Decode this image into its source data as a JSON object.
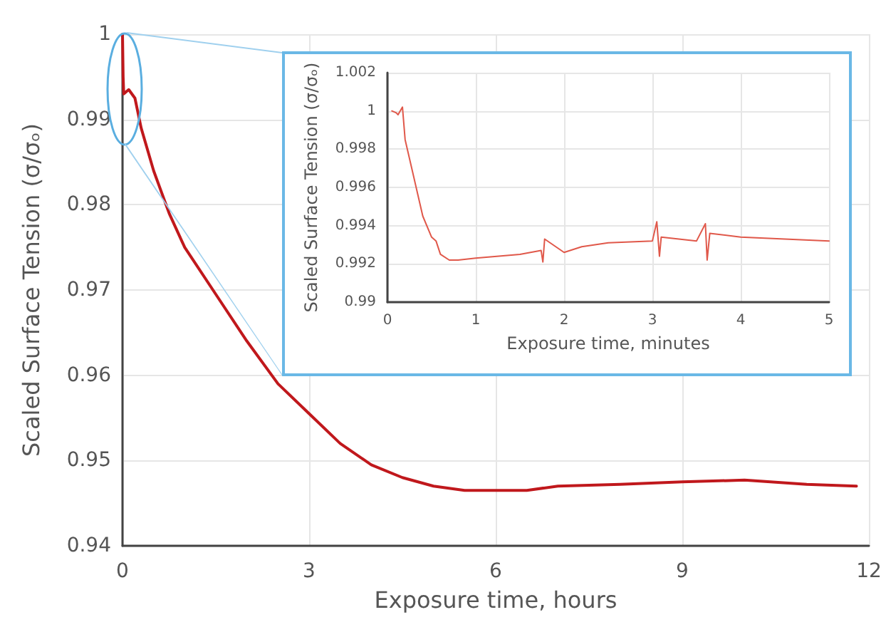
{
  "chart_data": [
    {
      "type": "line",
      "xlabel": "Exposure time, hours",
      "ylabel": "Scaled Surface Tension (σ/σₒ)",
      "xlim": [
        0,
        12
      ],
      "xticks": [
        0,
        3,
        6,
        9,
        12
      ],
      "ylim": [
        0.94,
        1
      ],
      "yticks": [
        0.94,
        0.95,
        0.96,
        0.97,
        0.98,
        0.99,
        1
      ],
      "grid": true,
      "marker": "none",
      "series": [
        {
          "color": "#c0181c",
          "x": [
            0,
            0.01,
            0.02,
            0.1,
            0.2,
            0.3,
            0.5,
            0.75,
            1,
            1.5,
            2,
            2.5,
            3,
            3.5,
            4,
            4.5,
            5,
            5.5,
            6,
            6.5,
            7,
            8,
            9,
            10,
            11,
            11.8
          ],
          "values": [
            1,
            0.995,
            0.993,
            0.9935,
            0.9925,
            0.989,
            0.984,
            0.979,
            0.975,
            0.9695,
            0.964,
            0.959,
            0.9555,
            0.952,
            0.9495,
            0.948,
            0.947,
            0.9465,
            0.9465,
            0.9465,
            0.947,
            0.9472,
            0.9475,
            0.9477,
            0.9472,
            0.947
          ]
        }
      ]
    },
    {
      "type": "line",
      "xlabel": "Exposure time, minutes",
      "ylabel": "Scaled Surface Tension (σ/σₒ)",
      "xlim": [
        0,
        5
      ],
      "xticks": [
        0,
        1,
        2,
        3,
        4,
        5
      ],
      "ylim": [
        0.99,
        1.002
      ],
      "yticks": [
        0.99,
        0.992,
        0.994,
        0.996,
        0.998,
        1,
        1.002
      ],
      "grid": true,
      "marker": "none",
      "series": [
        {
          "color": "#e0584a",
          "x": [
            0.05,
            0.1,
            0.12,
            0.17,
            0.2,
            0.3,
            0.4,
            0.5,
            0.55,
            0.6,
            0.7,
            0.8,
            1,
            1.5,
            1.74,
            1.76,
            1.78,
            2,
            2.2,
            2.5,
            3,
            3.05,
            3.08,
            3.1,
            3.5,
            3.6,
            3.62,
            3.65,
            4,
            4.5,
            5
          ],
          "values": [
            1,
            0.9999,
            0.9998,
            1.0002,
            0.9985,
            0.9965,
            0.9945,
            0.9934,
            0.9932,
            0.9925,
            0.9922,
            0.9922,
            0.9923,
            0.9925,
            0.9927,
            0.9921,
            0.9933,
            0.9926,
            0.9929,
            0.9931,
            0.9932,
            0.9942,
            0.9924,
            0.9934,
            0.9932,
            0.9941,
            0.9922,
            0.9936,
            0.9934,
            0.9933,
            0.9932
          ]
        }
      ]
    }
  ]
}
